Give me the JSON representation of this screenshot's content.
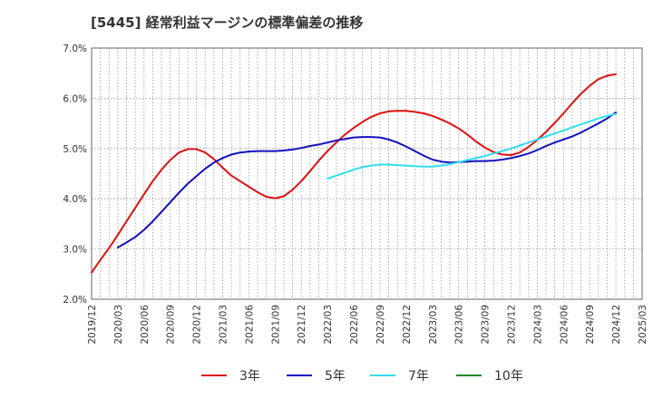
{
  "chart_data": {
    "type": "line",
    "title": "[5445]  経常利益マージンの標準偏差の推移",
    "xlabel": "",
    "ylabel": "",
    "ylim": [
      2.0,
      7.0
    ],
    "y_ticks": [
      "2.0%",
      "3.0%",
      "4.0%",
      "5.0%",
      "6.0%",
      "7.0%"
    ],
    "x_tick_labels": [
      "2019/12",
      "2020/03",
      "2020/06",
      "2020/09",
      "2020/12",
      "2021/03",
      "2021/06",
      "2021/09",
      "2021/12",
      "2022/03",
      "2022/06",
      "2022/09",
      "2022/12",
      "2023/03",
      "2023/06",
      "2023/09",
      "2023/12",
      "2024/03",
      "2024/06",
      "2024/09",
      "2024/12",
      "2025/03"
    ],
    "grid": true,
    "legend_position": "bottom",
    "series": [
      {
        "name": "3年",
        "color": "#dd1111",
        "x": [
          "2019/12",
          "2020/01",
          "2020/02",
          "2020/03",
          "2020/04",
          "2020/05",
          "2020/06",
          "2020/07",
          "2020/08",
          "2020/09",
          "2020/10",
          "2020/11",
          "2020/12",
          "2021/01",
          "2021/02",
          "2021/03",
          "2021/04",
          "2021/05",
          "2021/06",
          "2021/07",
          "2021/08",
          "2021/09",
          "2021/10",
          "2021/11",
          "2021/12",
          "2022/01",
          "2022/02",
          "2022/03",
          "2022/04",
          "2022/05",
          "2022/06",
          "2022/07",
          "2022/08",
          "2022/09",
          "2022/10",
          "2022/11",
          "2022/12",
          "2023/01",
          "2023/02",
          "2023/03",
          "2023/04",
          "2023/05",
          "2023/06",
          "2023/07",
          "2023/08",
          "2023/09",
          "2023/10",
          "2023/11",
          "2023/12",
          "2024/01",
          "2024/02",
          "2024/03",
          "2024/04",
          "2024/05",
          "2024/06",
          "2024/07",
          "2024/08",
          "2024/09",
          "2024/10",
          "2024/11",
          "2024/12"
        ],
        "values": [
          2.53,
          2.78,
          3.02,
          3.28,
          3.55,
          3.82,
          4.09,
          4.35,
          4.58,
          4.77,
          4.92,
          4.99,
          4.99,
          4.92,
          4.79,
          4.62,
          4.46,
          4.35,
          4.24,
          4.13,
          4.04,
          4.01,
          4.05,
          4.18,
          4.35,
          4.55,
          4.76,
          4.95,
          5.12,
          5.28,
          5.41,
          5.53,
          5.63,
          5.7,
          5.74,
          5.75,
          5.75,
          5.73,
          5.7,
          5.65,
          5.58,
          5.5,
          5.4,
          5.28,
          5.14,
          5.02,
          4.93,
          4.88,
          4.87,
          4.92,
          5.03,
          5.17,
          5.33,
          5.51,
          5.7,
          5.9,
          6.09,
          6.25,
          6.38,
          6.45,
          6.48
        ]
      },
      {
        "name": "5年",
        "color": "#1111bb",
        "x": [
          "2020/03",
          "2020/04",
          "2020/05",
          "2020/06",
          "2020/07",
          "2020/08",
          "2020/09",
          "2020/10",
          "2020/11",
          "2020/12",
          "2021/01",
          "2021/02",
          "2021/03",
          "2021/04",
          "2021/05",
          "2021/06",
          "2021/07",
          "2021/08",
          "2021/09",
          "2021/10",
          "2021/11",
          "2021/12",
          "2022/01",
          "2022/02",
          "2022/03",
          "2022/04",
          "2022/05",
          "2022/06",
          "2022/07",
          "2022/08",
          "2022/09",
          "2022/10",
          "2022/11",
          "2022/12",
          "2023/01",
          "2023/02",
          "2023/03",
          "2023/04",
          "2023/05",
          "2023/06",
          "2023/07",
          "2023/08",
          "2023/09",
          "2023/10",
          "2023/11",
          "2023/12",
          "2024/01",
          "2024/02",
          "2024/03",
          "2024/04",
          "2024/05",
          "2024/06",
          "2024/07",
          "2024/08",
          "2024/09",
          "2024/10",
          "2024/11",
          "2024/12"
        ],
        "values": [
          3.03,
          3.13,
          3.24,
          3.38,
          3.55,
          3.74,
          3.93,
          4.12,
          4.3,
          4.45,
          4.6,
          4.72,
          4.81,
          4.88,
          4.92,
          4.94,
          4.95,
          4.95,
          4.95,
          4.96,
          4.98,
          5.01,
          5.05,
          5.08,
          5.12,
          5.16,
          5.19,
          5.22,
          5.23,
          5.23,
          5.22,
          5.18,
          5.12,
          5.04,
          4.95,
          4.86,
          4.78,
          4.74,
          4.72,
          4.73,
          4.74,
          4.75,
          4.75,
          4.76,
          4.78,
          4.81,
          4.85,
          4.9,
          4.97,
          5.05,
          5.12,
          5.18,
          5.24,
          5.32,
          5.41,
          5.5,
          5.6,
          5.72
        ]
      },
      {
        "name": "7年",
        "color": "#33ddee",
        "x": [
          "2022/03",
          "2022/04",
          "2022/05",
          "2022/06",
          "2022/07",
          "2022/08",
          "2022/09",
          "2022/10",
          "2022/11",
          "2022/12",
          "2023/01",
          "2023/02",
          "2023/03",
          "2023/04",
          "2023/05",
          "2023/06",
          "2023/07",
          "2023/08",
          "2023/09",
          "2023/10",
          "2023/11",
          "2023/12",
          "2024/01",
          "2024/02",
          "2024/03",
          "2024/04",
          "2024/05",
          "2024/06",
          "2024/07",
          "2024/08",
          "2024/09",
          "2024/10",
          "2024/11",
          "2024/12"
        ],
        "values": [
          4.4,
          4.46,
          4.52,
          4.58,
          4.63,
          4.66,
          4.68,
          4.68,
          4.67,
          4.66,
          4.65,
          4.64,
          4.64,
          4.66,
          4.69,
          4.73,
          4.77,
          4.81,
          4.85,
          4.9,
          4.95,
          5.0,
          5.06,
          5.12,
          5.18,
          5.24,
          5.3,
          5.36,
          5.42,
          5.48,
          5.54,
          5.6,
          5.65,
          5.69
        ]
      },
      {
        "name": "10年",
        "color": "#228822",
        "x": [],
        "values": []
      }
    ]
  }
}
